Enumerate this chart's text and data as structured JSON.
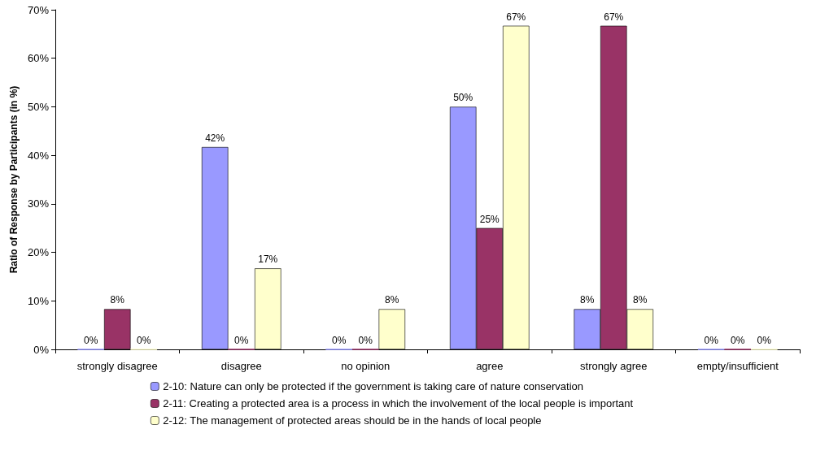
{
  "chart_data": {
    "type": "bar",
    "ylabel": "Ratio of Response by Participants (in %)",
    "categories": [
      "strongly disagree",
      "disagree",
      "no opinion",
      "agree",
      "strongly agree",
      "empty/insufficient"
    ],
    "series": [
      {
        "name": "2-10: Nature can only be protected if the government is taking care of nature conservation",
        "color": "#9999ff",
        "values": [
          0,
          41.7,
          0,
          50,
          8.3,
          0
        ],
        "value_labels": [
          "0%",
          "42%",
          "0%",
          "50%",
          "8%",
          "0%"
        ]
      },
      {
        "name": "2-11: Creating a protected area is a process in which the involvement of the local people is important",
        "color": "#993366",
        "values": [
          8.3,
          0,
          0,
          25,
          66.7,
          0
        ],
        "value_labels": [
          "8%",
          "0%",
          "0%",
          "25%",
          "67%",
          "0%"
        ]
      },
      {
        "name": "2-12: The management of protected areas should be in the hands of local people",
        "color": "#ffffcc",
        "values": [
          0,
          16.7,
          8.3,
          66.7,
          8.3,
          0
        ],
        "value_labels": [
          "0%",
          "17%",
          "8%",
          "67%",
          "8%",
          "0%"
        ]
      }
    ],
    "ylim": [
      0,
      70
    ],
    "yticks": [
      {
        "value": 0,
        "label": "0%"
      },
      {
        "value": 10,
        "label": "10%"
      },
      {
        "value": 20,
        "label": "20%"
      },
      {
        "value": 30,
        "label": "30%"
      },
      {
        "value": 40,
        "label": "40%"
      },
      {
        "value": 50,
        "label": "50%"
      },
      {
        "value": 60,
        "label": "60%"
      },
      {
        "value": 70,
        "label": "70%"
      }
    ],
    "grid": false,
    "legend": "bottom"
  }
}
